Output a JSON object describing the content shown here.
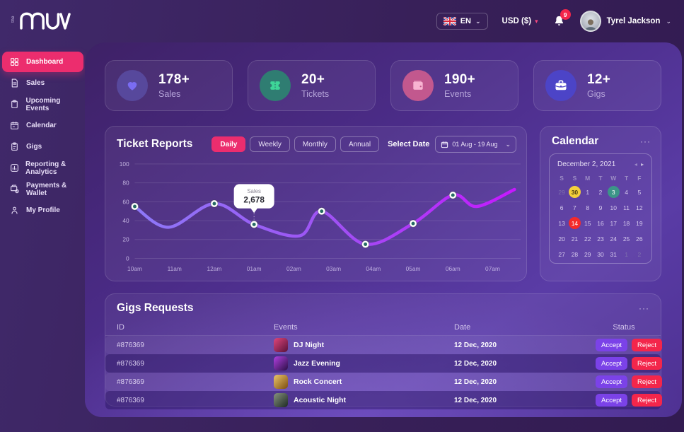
{
  "header": {
    "logo_text": "muv",
    "logo_prefix": "the",
    "language": {
      "label": "EN"
    },
    "currency": {
      "label": "USD ($)"
    },
    "notifications": {
      "count": "9"
    },
    "user": {
      "name": "Tyrel Jackson"
    }
  },
  "icons": {
    "chevron_down": "⌄",
    "chevron_small": "▾",
    "menu": "···",
    "calendar_prev": "◂",
    "calendar_next": "▸"
  },
  "sidebar": {
    "items": [
      {
        "label": "Dashboard",
        "icon": "dashboard-grid-icon",
        "active": true
      },
      {
        "label": "Sales",
        "icon": "sales-doc-icon",
        "active": false
      },
      {
        "label": "Upcoming Events",
        "icon": "upcoming-clipboard-icon",
        "active": false
      },
      {
        "label": "Calendar",
        "icon": "calendar-icon",
        "active": false
      },
      {
        "label": "Gigs",
        "icon": "gigs-clipboard-icon",
        "active": false
      },
      {
        "label": "Reporting & Analytics",
        "icon": "report-chart-icon",
        "active": false
      },
      {
        "label": "Payments & Wallet",
        "icon": "wallet-icon",
        "active": false
      },
      {
        "label": "My Profile",
        "icon": "profile-icon",
        "active": false
      }
    ]
  },
  "stats": [
    {
      "value": "178+",
      "label": "Sales",
      "icon": "heart-icon",
      "circle_color": "#57489c",
      "glyph_color": "#7a6cf3"
    },
    {
      "value": "20+",
      "label": "Tickets",
      "icon": "ticket-icon",
      "circle_color": "#2f7d72",
      "glyph_color": "#3ed598"
    },
    {
      "value": "190+",
      "label": "Events",
      "icon": "wallet-icon",
      "circle_color": "#c2588e",
      "glyph_color": "#f8b4d2"
    },
    {
      "value": "12+",
      "label": "Gigs",
      "icon": "briefcase-icon",
      "circle_color": "#4c44c7",
      "glyph_color": "#ffffff"
    }
  ],
  "ticket_reports": {
    "title": "Ticket Reports",
    "filters": [
      "Daily",
      "Weekly",
      "Monthly",
      "Annual"
    ],
    "active_filter": "Daily",
    "select_date_label": "Select Date",
    "date_range": "01 Aug - 19 Aug",
    "chart_data": {
      "type": "line",
      "x_labels": [
        "10am",
        "11am",
        "12am",
        "01am",
        "02am",
        "03am",
        "04am",
        "05am",
        "06am",
        "07am"
      ],
      "y_ticks": [
        0,
        20,
        40,
        60,
        80,
        100
      ],
      "ylim": [
        0,
        100
      ],
      "series": [
        {
          "name": "Sales",
          "points": [
            [
              0,
              55
            ],
            [
              0.85,
              33
            ],
            [
              2,
              58
            ],
            [
              3,
              36
            ],
            [
              4.15,
              24
            ],
            [
              4.7,
              50
            ],
            [
              5.8,
              15
            ],
            [
              7,
              37
            ],
            [
              8,
              67
            ],
            [
              8.6,
              55
            ],
            [
              9.55,
              73
            ]
          ],
          "marker_points": [
            [
              0,
              55
            ],
            [
              2,
              58
            ],
            [
              3,
              36
            ],
            [
              4.7,
              50
            ],
            [
              5.8,
              15
            ],
            [
              7,
              37
            ],
            [
              8,
              67
            ]
          ]
        }
      ],
      "tooltip": {
        "label": "Sales",
        "value": "2,678",
        "point": [
          3,
          36
        ]
      },
      "line_gradient": [
        "#8b7df8",
        "#a050f4",
        "#c716ff"
      ],
      "marker_center_color": "#256b62",
      "grid": true,
      "legend": false
    }
  },
  "calendar": {
    "title": "Calendar",
    "month_label": "December 2, 2021",
    "day_headers": [
      "S",
      "S",
      "M",
      "T",
      "W",
      "T",
      "F"
    ],
    "badge_colors": {
      "yellow": "#f4cf3a",
      "teal": "#3c9488",
      "red": "#f52a2a"
    },
    "cells": [
      {
        "d": "29",
        "muted": true
      },
      {
        "d": "30",
        "badge": "yellow"
      },
      {
        "d": "1"
      },
      {
        "d": "2"
      },
      {
        "d": "3",
        "badge": "teal"
      },
      {
        "d": "4"
      },
      {
        "d": "5"
      },
      {
        "d": "6"
      },
      {
        "d": "7"
      },
      {
        "d": "8"
      },
      {
        "d": "9"
      },
      {
        "d": "10"
      },
      {
        "d": "11"
      },
      {
        "d": "12"
      },
      {
        "d": "13"
      },
      {
        "d": "14",
        "badge": "red"
      },
      {
        "d": "15"
      },
      {
        "d": "16"
      },
      {
        "d": "17"
      },
      {
        "d": "18"
      },
      {
        "d": "19"
      },
      {
        "d": "20"
      },
      {
        "d": "21"
      },
      {
        "d": "22"
      },
      {
        "d": "23"
      },
      {
        "d": "24"
      },
      {
        "d": "25"
      },
      {
        "d": "26"
      },
      {
        "d": "27"
      },
      {
        "d": "28"
      },
      {
        "d": "29"
      },
      {
        "d": "30"
      },
      {
        "d": "31"
      },
      {
        "d": "1",
        "muted": true
      },
      {
        "d": "2",
        "muted": true
      }
    ]
  },
  "gigs": {
    "title": "Gigs Requests",
    "columns": [
      "ID",
      "Events",
      "Date",
      "Status"
    ],
    "accept_label": "Accept",
    "reject_label": "Reject",
    "rows": [
      {
        "id": "#876369",
        "event": "DJ Night",
        "date": "12 Dec, 2020",
        "thumb_colors": [
          "#e0457b",
          "#58123a"
        ]
      },
      {
        "id": "#876369",
        "event": "Jazz Evening",
        "date": "12 Dec, 2020",
        "thumb_colors": [
          "#b13fe0",
          "#2c1047"
        ]
      },
      {
        "id": "#876369",
        "event": "Rock Concert",
        "date": "12 Dec, 2020",
        "thumb_colors": [
          "#ecc66a",
          "#7c4d0e"
        ]
      },
      {
        "id": "#876369",
        "event": "Acoustic Night",
        "date": "12 Dec, 2020",
        "thumb_colors": [
          "#87927f",
          "#1d2a23"
        ]
      }
    ]
  },
  "colors": {
    "accent_pink": "#ec2d6e",
    "accept_purple": "#7b42e8",
    "reject_red": "#f3264b",
    "badge_red": "#f3264b",
    "panel_gradient_start": "#3e2166",
    "panel_gradient_end": "#5a3ca6"
  }
}
